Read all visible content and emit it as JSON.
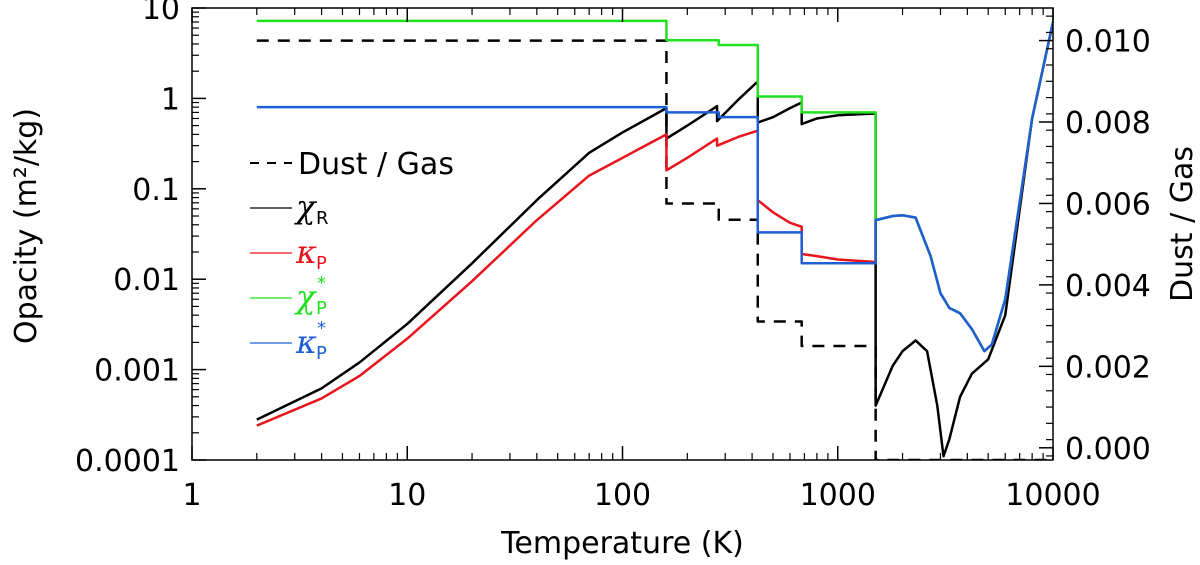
{
  "chart_data": {
    "type": "line",
    "xlabel": "Temperature (K)",
    "ylabel": "Opacity (m²/kg)",
    "ylabel_right": "Dust / Gas",
    "xscale": "log",
    "yscale": "log",
    "xlim": [
      1,
      10000
    ],
    "ylim": [
      0.0001,
      10
    ],
    "ylim_right": [
      -0.0003,
      0.0108
    ],
    "x_ticks": [
      1,
      10,
      100,
      1000,
      10000
    ],
    "x_tick_labels": [
      "1",
      "10",
      "100",
      "1000",
      "10000"
    ],
    "y_ticks": [
      0.0001,
      0.001,
      0.01,
      0.1,
      1,
      10
    ],
    "y_tick_labels": [
      "0.0001",
      "0.001",
      "0.01",
      "0.1",
      "1",
      "10"
    ],
    "y_right_ticks": [
      0.0,
      0.002,
      0.004,
      0.006,
      0.008,
      0.01
    ],
    "y_right_tick_labels": [
      "0.000",
      "0.002",
      "0.004",
      "0.006",
      "0.008",
      "0.010"
    ],
    "legend": {
      "position": "left-middle",
      "entries": [
        {
          "key": "dust_gas",
          "label": "Dust / Gas",
          "symbol": "",
          "sub": "",
          "sup": "",
          "color": "#000000",
          "dash": true
        },
        {
          "key": "chi_R",
          "label": "",
          "symbol": "χ",
          "sub": "R",
          "sup": "",
          "color": "#000000",
          "dash": false
        },
        {
          "key": "kappa_P",
          "label": "",
          "symbol": "κ",
          "sub": "P",
          "sup": "",
          "color": "#e8141c",
          "dash": false
        },
        {
          "key": "chi_P_star",
          "label": "",
          "symbol": "χ",
          "sub": "P",
          "sup": "*",
          "color": "#22e022",
          "dash": false
        },
        {
          "key": "kappa_P_star",
          "label": "",
          "symbol": "κ",
          "sub": "P",
          "sup": "*",
          "color": "#1f5fd6",
          "dash": false
        }
      ]
    },
    "series": [
      {
        "name": "Dust / Gas",
        "axis": "right",
        "color": "#000000",
        "dash": "12,9",
        "width": 2.5,
        "points": [
          [
            2,
            0.01
          ],
          [
            160,
            0.01
          ],
          [
            160,
            0.006
          ],
          [
            280,
            0.006
          ],
          [
            280,
            0.0056
          ],
          [
            425,
            0.0056
          ],
          [
            425,
            0.0031
          ],
          [
            680,
            0.0031
          ],
          [
            680,
            0.0025
          ],
          [
            1500,
            0.0025
          ],
          [
            1500,
            -0.0003
          ],
          [
            9800,
            -0.0003
          ]
        ]
      },
      {
        "name": "χR",
        "axis": "left",
        "color": "#000000",
        "dash": "",
        "width": 2.5,
        "points": [
          [
            2,
            0.00028
          ],
          [
            4,
            0.00062
          ],
          [
            6,
            0.0012
          ],
          [
            10,
            0.0032
          ],
          [
            20,
            0.015
          ],
          [
            40,
            0.075
          ],
          [
            70,
            0.25
          ],
          [
            100,
            0.42
          ],
          [
            160,
            0.78
          ],
          [
            160,
            0.36
          ],
          [
            200,
            0.5
          ],
          [
            275,
            0.82
          ],
          [
            275,
            0.56
          ],
          [
            350,
            1.0
          ],
          [
            420,
            1.5
          ],
          [
            425,
            1.5
          ],
          [
            425,
            0.54
          ],
          [
            500,
            0.62
          ],
          [
            600,
            0.78
          ],
          [
            680,
            0.9
          ],
          [
            680,
            0.52
          ],
          [
            800,
            0.6
          ],
          [
            1000,
            0.65
          ],
          [
            1500,
            0.68
          ],
          [
            1500,
            0.0004
          ],
          [
            1800,
            0.0011
          ],
          [
            2000,
            0.0016
          ],
          [
            2300,
            0.0021
          ],
          [
            2600,
            0.0016
          ],
          [
            2900,
            0.0004
          ],
          [
            3100,
            0.00011
          ],
          [
            3300,
            0.00017
          ],
          [
            3700,
            0.0005
          ],
          [
            4200,
            0.0009
          ],
          [
            5000,
            0.0013
          ],
          [
            6000,
            0.004
          ],
          [
            8000,
            0.6
          ],
          [
            10000,
            7
          ]
        ]
      },
      {
        "name": "κP",
        "axis": "left",
        "color": "#e8141c",
        "dash": "",
        "width": 2.5,
        "points": [
          [
            2,
            0.00024
          ],
          [
            4,
            0.00048
          ],
          [
            6,
            0.00085
          ],
          [
            10,
            0.0022
          ],
          [
            20,
            0.0095
          ],
          [
            40,
            0.045
          ],
          [
            70,
            0.14
          ],
          [
            100,
            0.22
          ],
          [
            160,
            0.4
          ],
          [
            160,
            0.16
          ],
          [
            200,
            0.22
          ],
          [
            275,
            0.36
          ],
          [
            275,
            0.3
          ],
          [
            350,
            0.38
          ],
          [
            425,
            0.44
          ],
          [
            425,
            0.075
          ],
          [
            500,
            0.055
          ],
          [
            600,
            0.042
          ],
          [
            680,
            0.038
          ],
          [
            680,
            0.019
          ],
          [
            800,
            0.018
          ],
          [
            1000,
            0.0165
          ],
          [
            1500,
            0.0155
          ],
          [
            1500,
            0.045
          ],
          [
            1800,
            0.05
          ],
          [
            2000,
            0.051
          ],
          [
            2300,
            0.048
          ],
          [
            2700,
            0.018
          ],
          [
            3000,
            0.007
          ],
          [
            3300,
            0.0048
          ],
          [
            3700,
            0.0042
          ],
          [
            4200,
            0.0028
          ],
          [
            4800,
            0.0016
          ],
          [
            5200,
            0.0019
          ],
          [
            6000,
            0.006
          ],
          [
            8000,
            0.6
          ],
          [
            10000,
            7
          ]
        ]
      },
      {
        "name": "χP*",
        "axis": "left",
        "color": "#22e022",
        "dash": "",
        "width": 2.5,
        "points": [
          [
            2,
            7.2
          ],
          [
            160,
            7.2
          ],
          [
            160,
            4.4
          ],
          [
            280,
            4.4
          ],
          [
            280,
            3.9
          ],
          [
            425,
            3.9
          ],
          [
            425,
            1.05
          ],
          [
            680,
            1.05
          ],
          [
            680,
            0.7
          ],
          [
            1500,
            0.7
          ],
          [
            1500,
            0.045
          ],
          [
            1800,
            0.05
          ],
          [
            2000,
            0.051
          ],
          [
            2300,
            0.048
          ],
          [
            2700,
            0.018
          ],
          [
            3000,
            0.007
          ],
          [
            3300,
            0.0048
          ],
          [
            3700,
            0.0042
          ],
          [
            4200,
            0.0028
          ],
          [
            4800,
            0.0016
          ],
          [
            5200,
            0.0019
          ],
          [
            6000,
            0.006
          ],
          [
            8000,
            0.6
          ],
          [
            10000,
            7
          ]
        ]
      },
      {
        "name": "κP*",
        "axis": "left",
        "color": "#1f5fd6",
        "dash": "",
        "width": 2.5,
        "points": [
          [
            2,
            0.8
          ],
          [
            160,
            0.8
          ],
          [
            160,
            0.7
          ],
          [
            280,
            0.7
          ],
          [
            280,
            0.62
          ],
          [
            425,
            0.62
          ],
          [
            425,
            0.033
          ],
          [
            680,
            0.033
          ],
          [
            680,
            0.015
          ],
          [
            1500,
            0.015
          ],
          [
            1500,
            0.045
          ],
          [
            1800,
            0.05
          ],
          [
            2000,
            0.051
          ],
          [
            2300,
            0.048
          ],
          [
            2700,
            0.018
          ],
          [
            3000,
            0.007
          ],
          [
            3300,
            0.0048
          ],
          [
            3700,
            0.0042
          ],
          [
            4200,
            0.0028
          ],
          [
            4800,
            0.0016
          ],
          [
            5200,
            0.0019
          ],
          [
            6000,
            0.006
          ],
          [
            8000,
            0.6
          ],
          [
            10000,
            7
          ]
        ]
      }
    ]
  }
}
